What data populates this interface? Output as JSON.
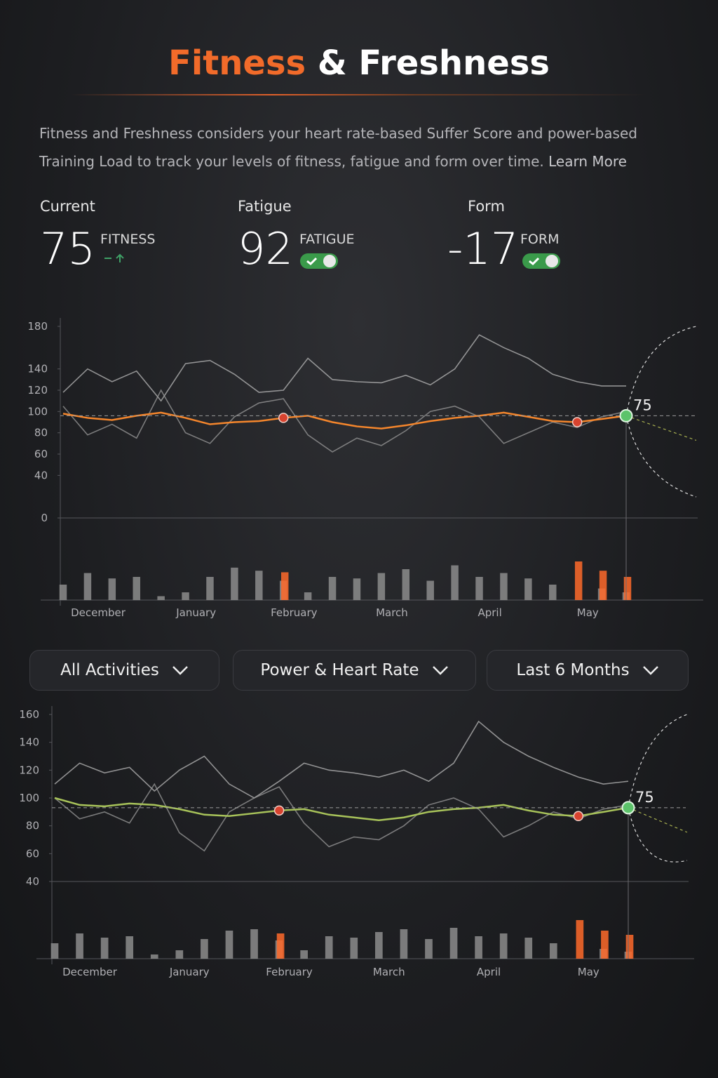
{
  "header": {
    "title_accent": "Fitness",
    "title_rest": "& Freshness",
    "description": "Fitness and Freshness considers your heart rate-based Suffer Score and power-based Training Load to track your levels of fitness, fatigue and form over time.",
    "learn_more": "Learn More"
  },
  "stats": [
    {
      "heading": "Current",
      "value": 75,
      "label": "FITNESS"
    },
    {
      "heading": "Fatigue",
      "value": 92,
      "label": "FATIGUE"
    },
    {
      "heading": "Form",
      "value": -17,
      "label": "FORM"
    }
  ],
  "filters": [
    "All Activities",
    "Power & Heart Rate",
    "Last 6 Months"
  ],
  "chart_data": [
    {
      "type": "line",
      "x": [
        "December",
        null,
        null,
        null,
        "January",
        null,
        null,
        null,
        "February",
        null,
        null,
        null,
        "March",
        null,
        null,
        null,
        "April",
        null,
        null,
        null,
        "May",
        null,
        null,
        null
      ],
      "ylim": [
        0,
        180
      ],
      "yticks": [
        0,
        40,
        60,
        80,
        100,
        120,
        140,
        180
      ],
      "series": [
        {
          "color": "#b8b8b8",
          "values": [
            118,
            140,
            128,
            138,
            110,
            145,
            148,
            135,
            118,
            120,
            150,
            130,
            128,
            127,
            134,
            125,
            140,
            172,
            160,
            150,
            135,
            128,
            124,
            124
          ]
        },
        {
          "color": "#9a9a9a",
          "values": [
            105,
            78,
            88,
            75,
            120,
            80,
            70,
            95,
            108,
            112,
            78,
            62,
            75,
            68,
            82,
            100,
            105,
            95,
            70,
            80,
            90,
            85,
            95,
            100
          ]
        },
        {
          "color": "#f5862c",
          "values": [
            98,
            94,
            92,
            96,
            99,
            94,
            88,
            90,
            91,
            94,
            96,
            90,
            86,
            84,
            87,
            91,
            94,
            96,
            99,
            95,
            91,
            90,
            93,
            96
          ]
        }
      ],
      "highlights": [
        9,
        21
      ],
      "annotation": "75",
      "load": [
        {
          "color": "#8c8c8c",
          "values": [
            20,
            35,
            28,
            30,
            5,
            10,
            30,
            42,
            38,
            25,
            10,
            30,
            28,
            35,
            40,
            25,
            45,
            30,
            35,
            28,
            20,
            null,
            15,
            10
          ]
        },
        {
          "color": "#ff6a2a",
          "values": [
            null,
            null,
            null,
            null,
            null,
            null,
            null,
            null,
            null,
            36,
            null,
            null,
            null,
            null,
            null,
            null,
            null,
            null,
            null,
            null,
            null,
            50,
            38,
            30
          ]
        }
      ]
    },
    {
      "type": "line",
      "x": [
        "December",
        null,
        null,
        null,
        "January",
        null,
        null,
        null,
        "February",
        null,
        null,
        null,
        "March",
        null,
        null,
        null,
        "April",
        null,
        null,
        null,
        "May",
        null,
        null,
        null
      ],
      "ylim": [
        40,
        160
      ],
      "yticks": [
        40,
        60,
        80,
        100,
        120,
        140,
        160
      ],
      "series": [
        {
          "color": "#b8b8b8",
          "values": [
            110,
            125,
            118,
            122,
            105,
            120,
            130,
            110,
            100,
            112,
            125,
            120,
            118,
            115,
            120,
            112,
            125,
            155,
            140,
            130,
            122,
            115,
            110,
            112
          ]
        },
        {
          "color": "#9a9a9a",
          "values": [
            100,
            85,
            90,
            82,
            110,
            75,
            62,
            90,
            100,
            108,
            82,
            65,
            72,
            70,
            80,
            95,
            100,
            92,
            72,
            80,
            90,
            85,
            92,
            95
          ]
        },
        {
          "color": "#a8c35a",
          "values": [
            100,
            95,
            94,
            96,
            95,
            92,
            88,
            87,
            89,
            91,
            92,
            88,
            86,
            84,
            86,
            90,
            92,
            93,
            95,
            91,
            88,
            87,
            90,
            93
          ]
        }
      ],
      "highlights": [
        9,
        21
      ],
      "annotation": "75",
      "load": [
        {
          "color": "#8c8c8c",
          "values": [
            22,
            36,
            30,
            32,
            6,
            12,
            28,
            40,
            42,
            26,
            12,
            32,
            30,
            38,
            42,
            28,
            44,
            32,
            36,
            30,
            22,
            null,
            14,
            10
          ]
        },
        {
          "color": "#ff6a2a",
          "values": [
            null,
            null,
            null,
            null,
            null,
            null,
            null,
            null,
            null,
            36,
            null,
            null,
            null,
            null,
            null,
            null,
            null,
            null,
            null,
            null,
            null,
            55,
            40,
            34
          ]
        }
      ]
    }
  ]
}
